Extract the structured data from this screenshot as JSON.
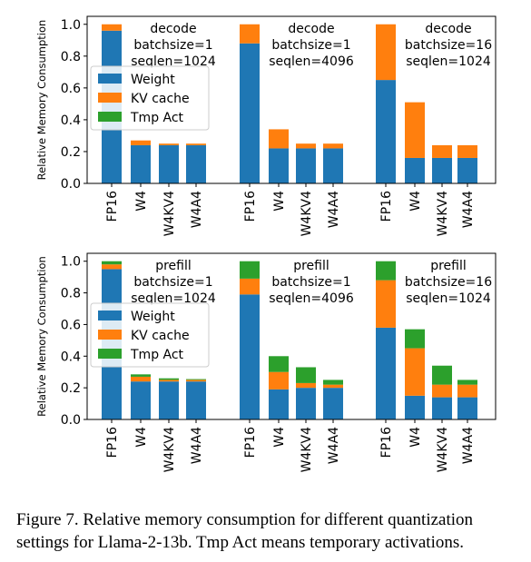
{
  "legend_items": [
    "Weight",
    "KV cache",
    "Tmp Act"
  ],
  "colors": {
    "Weight": "#1f77b4",
    "KV cache": "#ff7f0e",
    "Tmp Act": "#2ca02c"
  },
  "chart_data": [
    {
      "type": "bar",
      "stacked": true,
      "ylabel": "Relative Memory Consumption",
      "ylim": [
        0,
        1.05
      ],
      "yticks": [
        "0.0",
        "0.2",
        "0.4",
        "0.6",
        "0.8",
        "1.0"
      ],
      "legend": "left",
      "groups": [
        {
          "annotation": [
            "decode",
            "batchsize=1",
            "seqlen=1024"
          ],
          "categories": [
            "FP16",
            "W4",
            "W4KV4",
            "W4A4"
          ],
          "series": [
            {
              "name": "Weight",
              "values": [
                0.96,
                0.24,
                0.24,
                0.24
              ]
            },
            {
              "name": "KV cache",
              "values": [
                0.04,
                0.03,
                0.01,
                0.01
              ]
            },
            {
              "name": "Tmp Act",
              "values": [
                0.0,
                0.0,
                0.0,
                0.0
              ]
            }
          ]
        },
        {
          "annotation": [
            "decode",
            "batchsize=1",
            "seqlen=4096"
          ],
          "categories": [
            "FP16",
            "W4",
            "W4KV4",
            "W4A4"
          ],
          "series": [
            {
              "name": "Weight",
              "values": [
                0.88,
                0.22,
                0.22,
                0.22
              ]
            },
            {
              "name": "KV cache",
              "values": [
                0.12,
                0.12,
                0.03,
                0.03
              ]
            },
            {
              "name": "Tmp Act",
              "values": [
                0.0,
                0.0,
                0.0,
                0.0
              ]
            }
          ]
        },
        {
          "annotation": [
            "decode",
            "batchsize=16",
            "seqlen=1024"
          ],
          "categories": [
            "FP16",
            "W4",
            "W4KV4",
            "W4A4"
          ],
          "series": [
            {
              "name": "Weight",
              "values": [
                0.65,
                0.16,
                0.16,
                0.16
              ]
            },
            {
              "name": "KV cache",
              "values": [
                0.35,
                0.35,
                0.08,
                0.08
              ]
            },
            {
              "name": "Tmp Act",
              "values": [
                0.0,
                0.0,
                0.0,
                0.0
              ]
            }
          ]
        }
      ]
    },
    {
      "type": "bar",
      "stacked": true,
      "ylabel": "Relative Memory Consumption",
      "ylim": [
        0,
        1.05
      ],
      "yticks": [
        "0.0",
        "0.2",
        "0.4",
        "0.6",
        "0.8",
        "1.0"
      ],
      "legend": "left",
      "groups": [
        {
          "annotation": [
            "prefill",
            "batchsize=1",
            "seqlen=1024"
          ],
          "categories": [
            "FP16",
            "W4",
            "W4KV4",
            "W4A4"
          ],
          "series": [
            {
              "name": "Weight",
              "values": [
                0.95,
                0.24,
                0.24,
                0.24
              ]
            },
            {
              "name": "KV cache",
              "values": [
                0.03,
                0.03,
                0.01,
                0.01
              ]
            },
            {
              "name": "Tmp Act",
              "values": [
                0.02,
                0.015,
                0.01,
                0.005
              ]
            }
          ]
        },
        {
          "annotation": [
            "prefill",
            "batchsize=1",
            "seqlen=4096"
          ],
          "categories": [
            "FP16",
            "W4",
            "W4KV4",
            "W4A4"
          ],
          "series": [
            {
              "name": "Weight",
              "values": [
                0.79,
                0.19,
                0.2,
                0.2
              ]
            },
            {
              "name": "KV cache",
              "values": [
                0.1,
                0.11,
                0.03,
                0.02
              ]
            },
            {
              "name": "Tmp Act",
              "values": [
                0.11,
                0.1,
                0.1,
                0.03
              ]
            }
          ]
        },
        {
          "annotation": [
            "prefill",
            "batchsize=16",
            "seqlen=1024"
          ],
          "categories": [
            "FP16",
            "W4",
            "W4KV4",
            "W4A4"
          ],
          "series": [
            {
              "name": "Weight",
              "values": [
                0.58,
                0.15,
                0.14,
                0.14
              ]
            },
            {
              "name": "KV cache",
              "values": [
                0.3,
                0.3,
                0.08,
                0.08
              ]
            },
            {
              "name": "Tmp Act",
              "values": [
                0.12,
                0.12,
                0.12,
                0.03
              ]
            }
          ]
        }
      ]
    }
  ],
  "caption": "Figure 7. Relative memory consumption for different quantization settings for Llama-2-13b. Tmp Act means temporary activations."
}
